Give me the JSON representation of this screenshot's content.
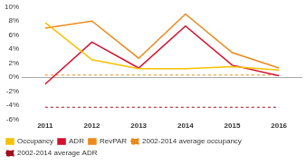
{
  "chart_data": {
    "type": "line",
    "categories": [
      "2011",
      "2012",
      "2013",
      "2014",
      "2015",
      "2016"
    ],
    "series": [
      {
        "name": "Occupancy",
        "color": "#f5c200",
        "values": [
          7.8,
          2.5,
          1.2,
          1.2,
          1.5,
          1.0
        ],
        "line_style": "solid"
      },
      {
        "name": "ADR",
        "color": "#d4102e",
        "values": [
          -1.0,
          5.0,
          1.3,
          7.3,
          1.7,
          0.2
        ],
        "line_style": "solid"
      },
      {
        "name": "RevPAR",
        "color": "#eb8a1e",
        "values": [
          7.0,
          8.0,
          2.7,
          9.0,
          3.5,
          1.3
        ],
        "line_style": "solid"
      },
      {
        "name": "2002-2014 average occupancy",
        "color": "#eb8a1e",
        "values": [
          0.3,
          0.3,
          0.3,
          0.3,
          0.3,
          0.3
        ],
        "line_style": "dashed"
      },
      {
        "name": "2002-2014 average ADR",
        "color": "#a3101d",
        "values": [
          -4.3,
          -4.3,
          -4.3,
          -4.3,
          -4.3,
          -4.3
        ],
        "line_style": "dashed"
      }
    ],
    "ylim": [
      -6,
      10
    ],
    "yticks": [
      {
        "value": -6,
        "label": "-6%"
      },
      {
        "value": -4,
        "label": "-4%"
      },
      {
        "value": -2,
        "label": "-2%"
      },
      {
        "value": 0,
        "label": "0%"
      },
      {
        "value": 2,
        "label": "2%"
      },
      {
        "value": 4,
        "label": "4%"
      },
      {
        "value": 6,
        "label": "6%"
      },
      {
        "value": 8,
        "label": "8%"
      },
      {
        "value": 10,
        "label": "10%"
      }
    ],
    "grid": false,
    "legend": "bottom",
    "marker": "none"
  }
}
